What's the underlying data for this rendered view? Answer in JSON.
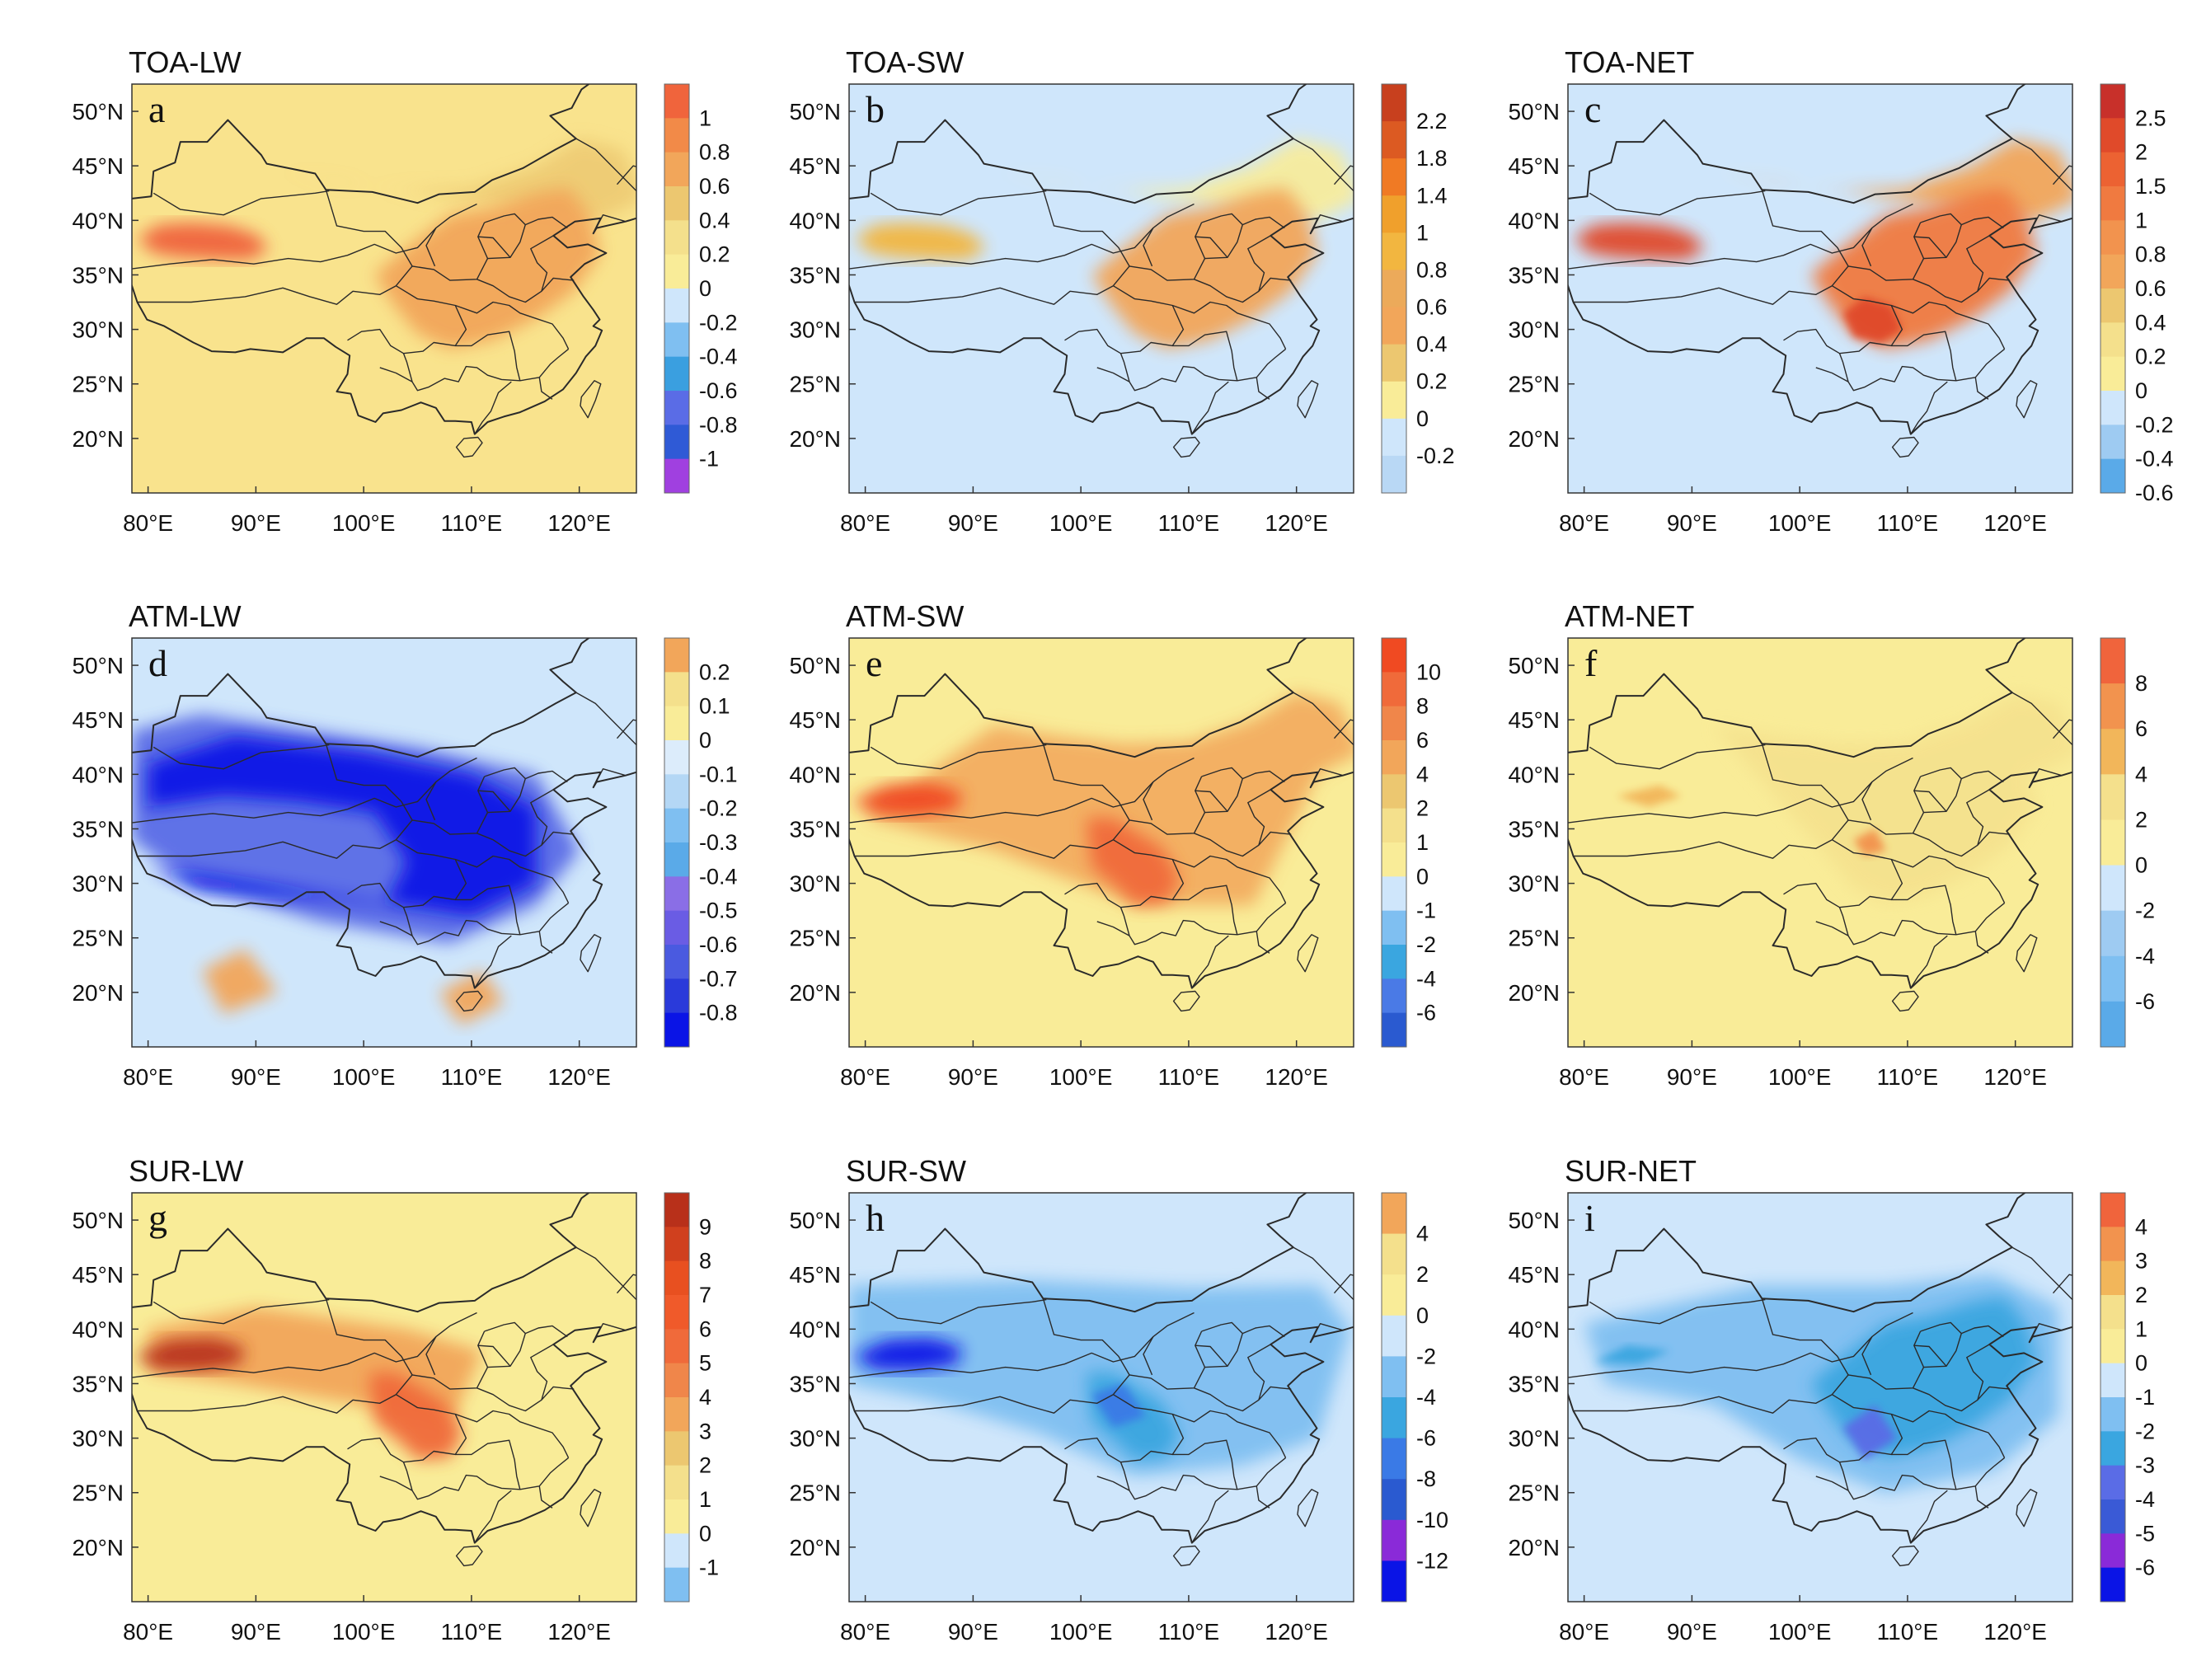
{
  "figure": {
    "x_axis_ticks": [
      "80°E",
      "90°E",
      "100°E",
      "110°E",
      "120°E"
    ],
    "y_axis_ticks": [
      "50°N",
      "45°N",
      "40°N",
      "35°N",
      "30°N",
      "25°N",
      "20°N"
    ],
    "panels": [
      {
        "id": "a",
        "title": "TOA-LW",
        "letter": "a",
        "background": "#f9e38d",
        "colorbar": {
          "labels": [
            "1",
            "0.8",
            "0.6",
            "0.4",
            "0.2",
            "0",
            "-0.2",
            "-0.4",
            "-0.6",
            "-0.8",
            "-1"
          ],
          "colors": [
            "#f0643c",
            "#f28a48",
            "#f2a65a",
            "#ecc770",
            "#f4e08c",
            "#f9ec98",
            "#cfe6fb",
            "#7fbff1",
            "#3a9fe0",
            "#5a6ce6",
            "#2f5ad6",
            "#a040e0"
          ]
        },
        "features": [
          {
            "type": "region",
            "fill": "#f2a65a",
            "level": "0.6"
          },
          {
            "type": "region",
            "fill": "#f0643c",
            "level": "0.8"
          },
          {
            "type": "region",
            "fill": "#ecc770",
            "level": "0.4"
          }
        ]
      },
      {
        "id": "b",
        "title": "TOA-SW",
        "letter": "b",
        "background": "#cfe6fb",
        "colorbar": {
          "labels": [
            "2.2",
            "1.8",
            "1.4",
            "1",
            "0.8",
            "0.6",
            "0.4",
            "0.2",
            "0",
            "-0.2"
          ],
          "colors": [
            "#c8401e",
            "#dc5a22",
            "#f07a24",
            "#f0a02c",
            "#f2b640",
            "#ecaa5a",
            "#f2a65a",
            "#ecc770",
            "#f9ec98",
            "#cfe6fb",
            "#b9d8f5"
          ]
        },
        "features": [
          {
            "type": "region",
            "fill": "#f2a65a",
            "level": "0.4"
          },
          {
            "type": "region",
            "fill": "#f9ec98",
            "level": "0.2"
          }
        ]
      },
      {
        "id": "c",
        "title": "TOA-NET",
        "letter": "c",
        "background": "#cfe6fb",
        "colorbar": {
          "labels": [
            "2.5",
            "2",
            "1.5",
            "1",
            "0.8",
            "0.6",
            "0.4",
            "0.2",
            "0",
            "-0.2",
            "-0.4",
            "-0.6"
          ],
          "colors": [
            "#c8302a",
            "#e04a2a",
            "#ec6232",
            "#f07a40",
            "#f2934e",
            "#f2a65a",
            "#ecc770",
            "#f4e08c",
            "#f9ec98",
            "#cfe6fb",
            "#9ecbf2",
            "#5aaae8"
          ]
        },
        "features": [
          {
            "type": "region",
            "fill": "#f07a40",
            "level": "1"
          },
          {
            "type": "region",
            "fill": "#e04a2a",
            "level": "1.5"
          }
        ]
      },
      {
        "id": "d",
        "title": "ATM-LW",
        "letter": "d",
        "background": "#cfe6fb",
        "colorbar": {
          "labels": [
            "0.2",
            "0.1",
            "0",
            "-0.1",
            "-0.2",
            "-0.3",
            "-0.4",
            "-0.5",
            "-0.6",
            "-0.7",
            "-0.8"
          ],
          "colors": [
            "#f2a65a",
            "#f4e08c",
            "#f9ec98",
            "#dcecfb",
            "#b4d7f5",
            "#7fbff1",
            "#5aaae8",
            "#8a6ee6",
            "#6a5ce4",
            "#4a5ae0",
            "#2a3ada",
            "#0a14e6"
          ]
        },
        "features": [
          {
            "type": "region",
            "fill": "#0a14e6",
            "level": "-0.8"
          },
          {
            "type": "region",
            "fill": "#f2a65a",
            "level": "0.2"
          }
        ]
      },
      {
        "id": "e",
        "title": "ATM-SW",
        "letter": "e",
        "background": "#f9ec98",
        "colorbar": {
          "labels": [
            "10",
            "8",
            "6",
            "4",
            "2",
            "1",
            "0",
            "-1",
            "-2",
            "-4",
            "-6"
          ],
          "colors": [
            "#f04a22",
            "#f06a3a",
            "#f0864a",
            "#f2a65a",
            "#ecc770",
            "#f4e08c",
            "#f9ec98",
            "#cfe6fb",
            "#7fbff1",
            "#3aa6e0",
            "#4a7ae6",
            "#2a5ad0"
          ]
        },
        "features": [
          {
            "type": "region",
            "fill": "#f2a65a",
            "level": "4"
          },
          {
            "type": "region",
            "fill": "#f04a22",
            "level": "10"
          }
        ]
      },
      {
        "id": "f",
        "title": "ATM-NET",
        "letter": "f",
        "background": "#f9ec98",
        "colorbar": {
          "labels": [
            "8",
            "6",
            "4",
            "2",
            "0",
            "-2",
            "-4",
            "-6"
          ],
          "colors": [
            "#f0643c",
            "#f2934e",
            "#f2b65a",
            "#f4e08c",
            "#f9ec98",
            "#cfe6fb",
            "#9ecbf2",
            "#7fbff1",
            "#5aaae8"
          ]
        },
        "features": [
          {
            "type": "region",
            "fill": "#f2b65a",
            "level": "4"
          }
        ]
      },
      {
        "id": "g",
        "title": "SUR-LW",
        "letter": "g",
        "background": "#f9ec98",
        "colorbar": {
          "labels": [
            "9",
            "8",
            "7",
            "6",
            "5",
            "4",
            "3",
            "2",
            "1",
            "0",
            "-1"
          ],
          "colors": [
            "#b8301a",
            "#d0401e",
            "#e85020",
            "#f05a2a",
            "#f06a3a",
            "#f0864a",
            "#f2a65a",
            "#ecc770",
            "#f4e08c",
            "#f9ec98",
            "#cfe6fb",
            "#7fbff1"
          ]
        },
        "features": [
          {
            "type": "region",
            "fill": "#f06a3a",
            "level": "5"
          },
          {
            "type": "region",
            "fill": "#b8301a",
            "level": "9"
          }
        ]
      },
      {
        "id": "h",
        "title": "SUR-SW",
        "letter": "h",
        "background": "#cfe6fb",
        "colorbar": {
          "labels": [
            "4",
            "2",
            "0",
            "-2",
            "-4",
            "-6",
            "-8",
            "-10",
            "-12"
          ],
          "colors": [
            "#f2a65a",
            "#f4e08c",
            "#f9ec98",
            "#cfe6fb",
            "#7fbff1",
            "#3aa6e0",
            "#3a7ae6",
            "#2a5ad0",
            "#8a2ad8",
            "#0a14e6"
          ]
        },
        "features": [
          {
            "type": "region",
            "fill": "#7fbff1",
            "level": "-2"
          },
          {
            "type": "region",
            "fill": "#0a14e6",
            "level": "-12"
          }
        ]
      },
      {
        "id": "i",
        "title": "SUR-NET",
        "letter": "i",
        "background": "#cfe6fb",
        "colorbar": {
          "labels": [
            "4",
            "3",
            "2",
            "1",
            "0",
            "-1",
            "-2",
            "-3",
            "-4",
            "-5",
            "-6"
          ],
          "colors": [
            "#f0643c",
            "#f2934e",
            "#f2b65a",
            "#f4e08c",
            "#f9ec98",
            "#cfe6fb",
            "#7fbff1",
            "#3aa6e0",
            "#5a6ce6",
            "#3a5ad6",
            "#8a2ad8",
            "#0a14e6"
          ]
        },
        "features": [
          {
            "type": "region",
            "fill": "#7fbff1",
            "level": "-1"
          },
          {
            "type": "region",
            "fill": "#3aa6e0",
            "level": "-2"
          }
        ]
      }
    ]
  }
}
